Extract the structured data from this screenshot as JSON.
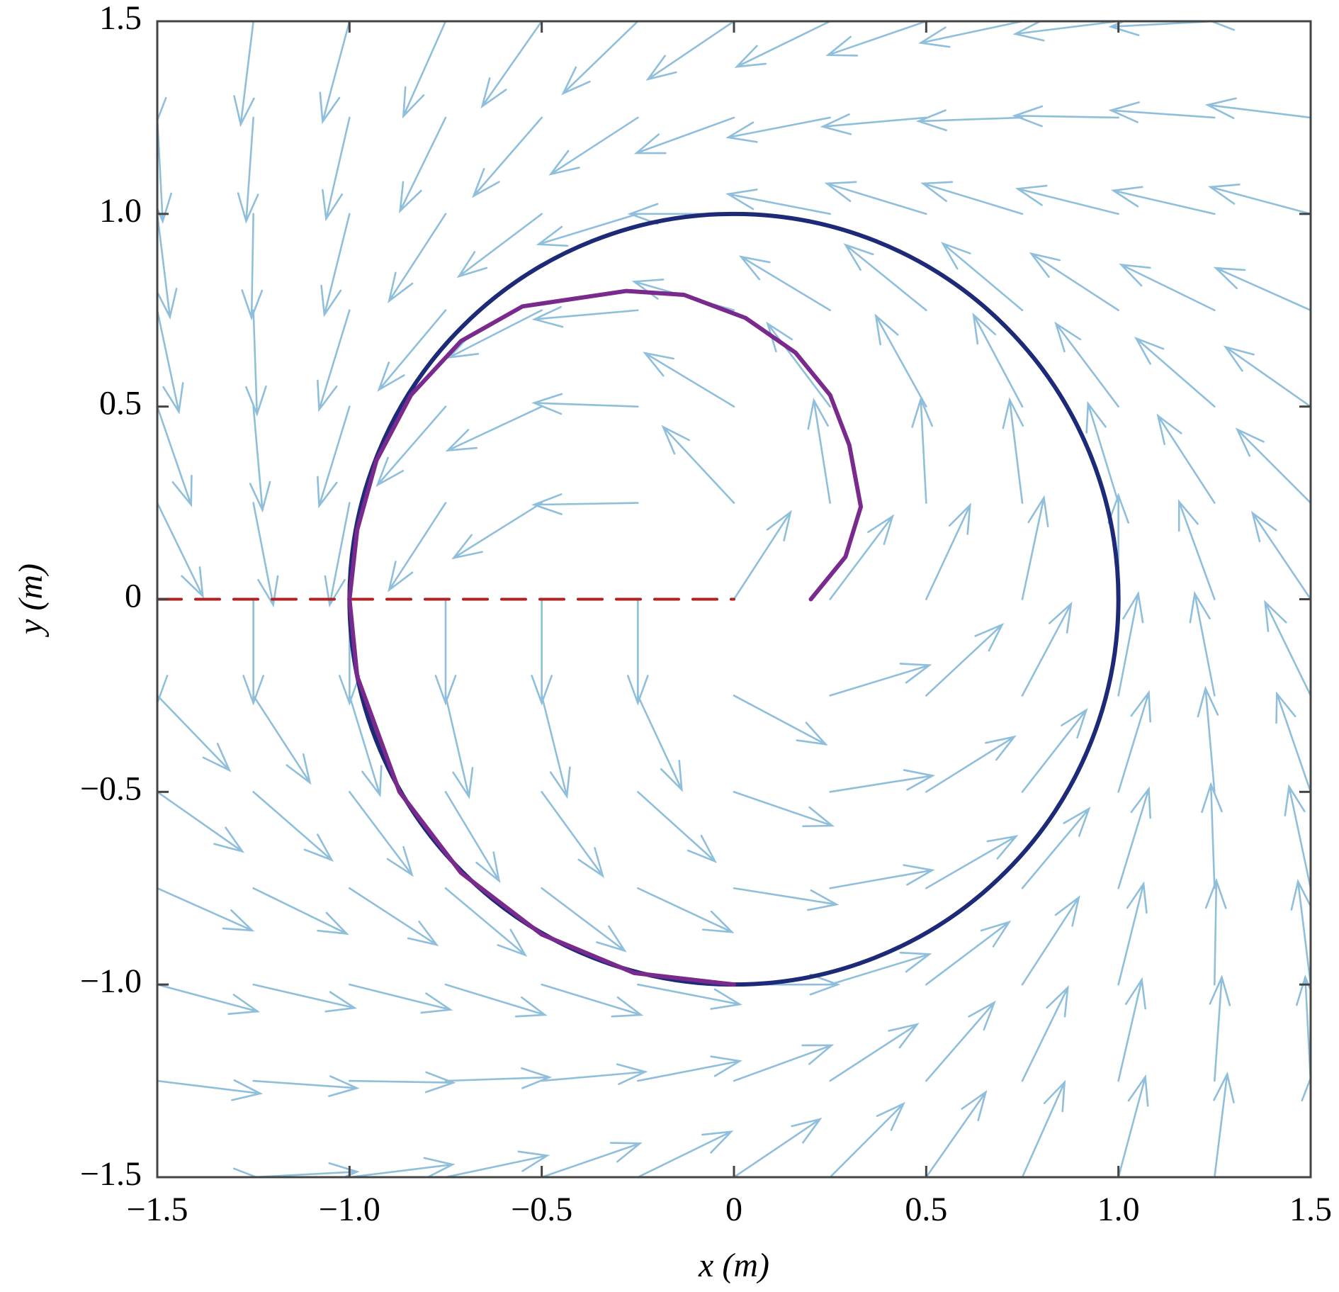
{
  "chart_data": {
    "type": "quiver",
    "x_label": "x (m)",
    "y_label": "y (m)",
    "xlim": [
      -1.5,
      1.5
    ],
    "ylim": [
      -1.5,
      1.5
    ],
    "xticks": [
      {
        "value": -1.5,
        "label": "−1.5"
      },
      {
        "value": -1,
        "label": "−1.0"
      },
      {
        "value": -0.5,
        "label": "−0.5"
      },
      0,
      0.5,
      {
        "value": 1,
        "label": "1.0"
      },
      1.5
    ],
    "yticks": [
      {
        "value": -1.5,
        "label": "−1.5"
      },
      {
        "value": -1,
        "label": "−1.0"
      },
      {
        "value": -0.5,
        "label": "−0.5"
      },
      0,
      0.5,
      {
        "value": 1,
        "label": "1.0"
      },
      1.5
    ],
    "field": {
      "color": "#8fbfdb",
      "length": 0.27,
      "x": [
        -1.5,
        -1.25,
        -1,
        -0.75,
        -0.5,
        -0.25,
        0,
        0.25,
        0.5,
        0.75,
        1,
        1.25,
        1.5
      ],
      "y": [
        1.5,
        1.25,
        1,
        0.75,
        0.5,
        0.25,
        0,
        -0.25,
        -0.5,
        -0.75,
        -1,
        -1.25,
        -1.5
      ],
      "angles": [
        [
          -91,
          -97,
          -105,
          -114,
          -125,
          -136,
          -146,
          -154,
          -161,
          -168,
          -173,
          -177,
          179
        ],
        [
          -87,
          -94,
          -103,
          -116,
          -131,
          -147,
          -160,
          -169,
          -175,
          -178,
          179,
          176,
          173
        ],
        [
          -83,
          -91,
          -104,
          -123,
          -143,
          -163,
          180,
          169,
          163,
          163,
          166,
          167,
          165
        ],
        [
          -78,
          -88,
          -107,
          -130,
          -153,
          -175,
          164,
          149,
          141,
          140,
          147,
          154,
          156
        ],
        [
          -71,
          -85,
          -107,
          -131,
          -155,
          178,
          149,
          127,
          119,
          118,
          127,
          139,
          145
        ],
        [
          -64,
          -79,
          -101,
          -123,
          -148,
          -179,
          133,
          99,
          93,
          97,
          107,
          123,
          135
        ],
        [
          -90,
          -90,
          -90,
          -90,
          -90,
          -90,
          57,
          53,
          65,
          78,
          90,
          110,
          124
        ],
        [
          -46,
          -57,
          -73,
          -77,
          -76,
          -65,
          -28,
          17,
          43,
          62,
          79,
          101,
          116
        ],
        [
          -35,
          -41,
          -53,
          -59,
          -54,
          -42,
          -19,
          9,
          32,
          52,
          73,
          95,
          109
        ],
        [
          -24,
          -26,
          -33,
          -40,
          -37,
          -25,
          -9,
          10,
          30,
          50,
          73,
          92,
          102
        ],
        [
          -15,
          -13,
          -14,
          -17,
          -17,
          -11,
          0,
          17,
          37,
          57,
          76,
          89,
          97
        ],
        [
          -7,
          -4,
          -1,
          2,
          5,
          11,
          20,
          33,
          49,
          64,
          77,
          86,
          93
        ],
        [
          -1,
          3,
          7,
          12,
          19,
          26,
          34,
          45,
          55,
          66,
          75,
          83,
          89
        ]
      ]
    },
    "circle": {
      "center": [
        0,
        0
      ],
      "radius": 1,
      "color": "#1c2a78"
    },
    "series": [
      {
        "color": "#b22222",
        "dash": true,
        "x": [
          -1.5,
          0
        ],
        "y": [
          0,
          0
        ]
      },
      {
        "color": "#7a2a8c",
        "dash": false,
        "x": [
          0.2,
          0.29,
          0.33,
          0.3,
          0.25,
          0.16,
          0.03,
          -0.13,
          -0.28,
          -0.55,
          -0.71,
          -0.84,
          -0.93,
          -0.98,
          -1.0,
          -0.98,
          -0.87,
          -0.71,
          -0.5,
          -0.26,
          0
        ],
        "y": [
          0,
          0.11,
          0.24,
          0.4,
          0.53,
          0.64,
          0.73,
          0.79,
          0.8,
          0.76,
          0.67,
          0.53,
          0.36,
          0.18,
          0,
          -0.2,
          -0.5,
          -0.71,
          -0.87,
          -0.97,
          -1
        ]
      }
    ]
  }
}
